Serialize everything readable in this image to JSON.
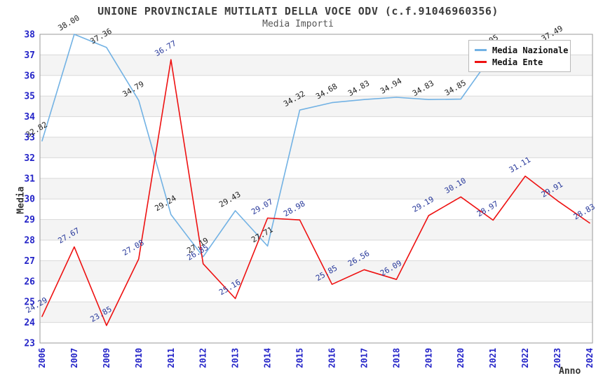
{
  "header": {
    "title": "UNIONE PROVINCIALE MUTILATI DELLA VOCE ODV (c.f.91046960356)",
    "subtitle": "Media Importi"
  },
  "colors": {
    "band_gray": "#f4f4f4",
    "band_white": "#ffffff",
    "gridline": "#d9d9d9",
    "plot_border": "#9a9a9a",
    "tick_text": "#2424c8",
    "axis_title_text": "#333333"
  },
  "chart_data": {
    "type": "line",
    "title": "UNIONE PROVINCIALE MUTILATI DELLA VOCE ODV (c.f.91046960356)",
    "subtitle": "Media Importi",
    "xlabel": "Anno",
    "ylabel": "Media",
    "ylim": [
      23,
      38
    ],
    "yticks": [
      23,
      24,
      25,
      26,
      27,
      28,
      29,
      30,
      31,
      32,
      33,
      34,
      35,
      36,
      37,
      38
    ],
    "grid": true,
    "legend_position": "top-right",
    "categories": [
      2006,
      2007,
      2009,
      2010,
      2011,
      2012,
      2013,
      2014,
      2015,
      2016,
      2017,
      2018,
      2019,
      2020,
      2021,
      2022,
      2023,
      2024
    ],
    "series": [
      {
        "name": "Media Nazionale",
        "color": "#72b2e4",
        "label_color": "#1f1f1f",
        "values": [
          32.82,
          38.0,
          37.36,
          34.79,
          29.24,
          27.19,
          29.43,
          27.71,
          34.32,
          34.68,
          34.83,
          34.94,
          34.83,
          34.85,
          37.05,
          37.2,
          37.49,
          null
        ],
        "labels": [
          "32.82",
          "38.00",
          "37.36",
          "34.79",
          "29.24",
          "27.19",
          "29.43",
          "27.71",
          "34.32",
          "34.68",
          "34.83",
          "34.94",
          "34.83",
          "34.85",
          "37.05",
          null,
          "37.49",
          null
        ]
      },
      {
        "name": "Media Ente",
        "color": "#ee1111",
        "label_color": "#28399b",
        "values": [
          24.29,
          27.67,
          23.85,
          27.08,
          36.77,
          26.85,
          25.16,
          29.07,
          28.98,
          25.85,
          26.56,
          26.09,
          29.19,
          30.1,
          28.97,
          31.11,
          29.91,
          28.83
        ],
        "labels": [
          "24.29",
          "27.67",
          "23.85",
          "27.08",
          "36.77",
          "26.85",
          "25.16",
          "29.07",
          "28.98",
          "25.85",
          "26.56",
          "26.09",
          "29.19",
          "30.10",
          "28.97",
          "31.11",
          "29.91",
          "28.83"
        ]
      }
    ]
  }
}
